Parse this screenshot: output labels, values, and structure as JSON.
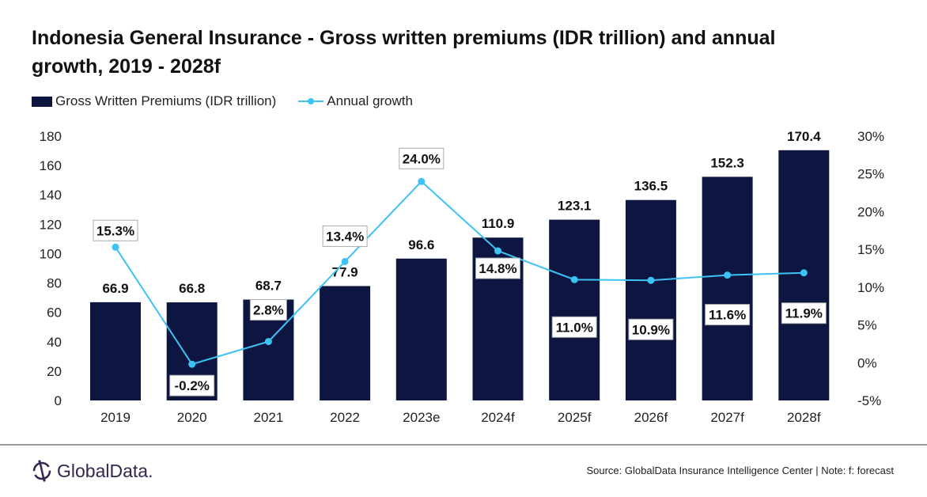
{
  "chart_data": {
    "type": "bar+line",
    "title": "Indonesia General Insurance - Gross written premiums (IDR trillion) and annual growth, 2019 - 2028f",
    "categories": [
      "2019",
      "2020",
      "2021",
      "2022",
      "2023e",
      "2024f",
      "2025f",
      "2026f",
      "2027f",
      "2028f"
    ],
    "series": [
      {
        "name": "Gross Written Premiums (IDR trillion)",
        "type": "bar",
        "axis": "left",
        "color": "#0d1541",
        "values": [
          66.9,
          66.8,
          68.7,
          77.9,
          96.6,
          110.9,
          123.1,
          136.5,
          152.3,
          170.4
        ],
        "labels": [
          "66.9",
          "66.8",
          "68.7",
          "77.9",
          "96.6",
          "110.9",
          "123.1",
          "136.5",
          "152.3",
          "170.4"
        ]
      },
      {
        "name": "Annual growth",
        "type": "line",
        "axis": "right",
        "color": "#3cc3f5",
        "values": [
          15.3,
          -0.2,
          2.8,
          13.4,
          24.0,
          14.8,
          11.0,
          10.9,
          11.6,
          11.9
        ],
        "labels": [
          "15.3%",
          "-0.2%",
          "2.8%",
          "13.4%",
          "24.0%",
          "14.8%",
          "11.0%",
          "10.9%",
          "11.6%",
          "11.9%"
        ]
      }
    ],
    "yleft": {
      "lim": [
        0,
        180
      ],
      "ticks": [
        "0",
        "20",
        "40",
        "60",
        "80",
        "100",
        "120",
        "140",
        "160",
        "180"
      ]
    },
    "yright": {
      "lim": [
        -5,
        30
      ],
      "ticks": [
        "-5%",
        "0%",
        "5%",
        "10%",
        "15%",
        "20%",
        "25%",
        "30%"
      ]
    },
    "grid": false,
    "legend": "top-left"
  },
  "source": "Source: GlobalData Insurance Intelligence Center | Note: f: forecast",
  "logo_text": "GlobalData."
}
